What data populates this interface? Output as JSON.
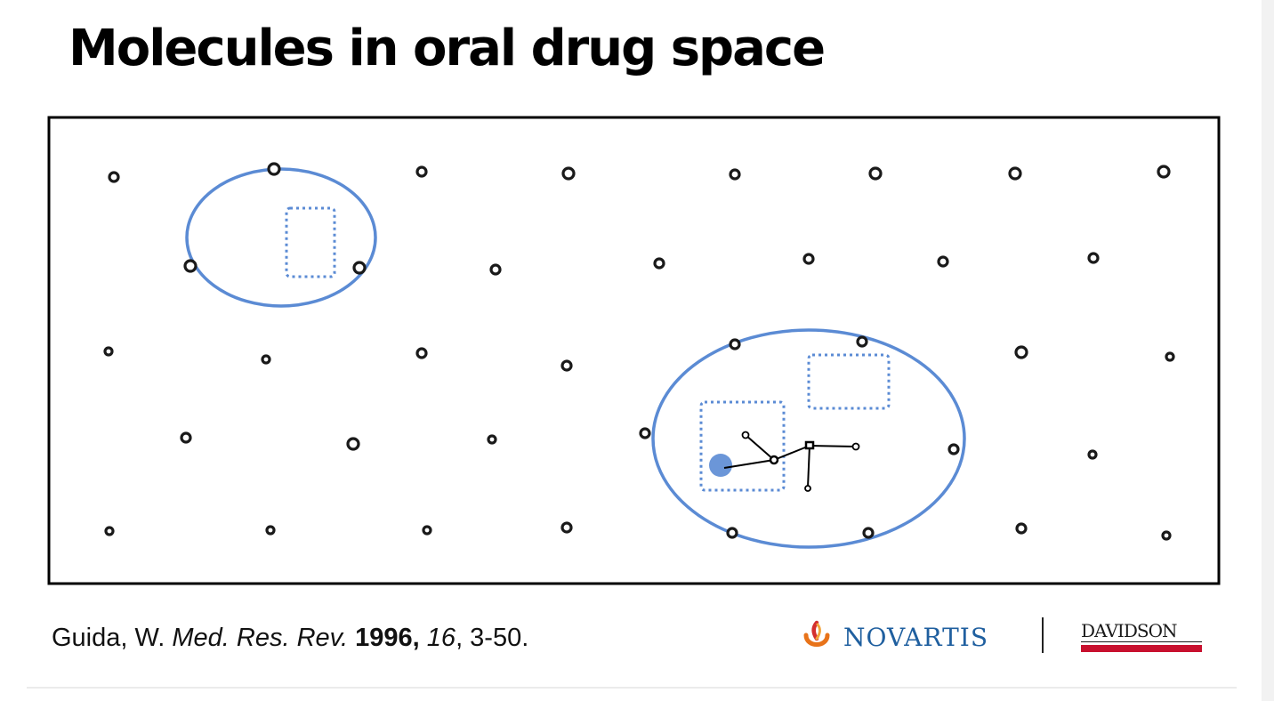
{
  "title": "Molecules in oral drug space",
  "citation": {
    "author": "Guida, W.",
    "journal": "Med. Res. Rev.",
    "year": "1996,",
    "volume": "16",
    "pages": ", 3-50."
  },
  "logos": {
    "novartis": "NOVARTIS",
    "davidson": "DAVIDSON"
  },
  "colors": {
    "circle": "#5b8bd4",
    "dot": "#1a1a1a",
    "novartis_blue": "#1f5f9f",
    "novartis_orange": "#e8731a",
    "novartis_red": "#d32f2f",
    "davidson_red": "#c8102e"
  },
  "icons": {
    "novartis_mark": "novartis-flame-icon",
    "highlight": "filled-circle-icon"
  }
}
